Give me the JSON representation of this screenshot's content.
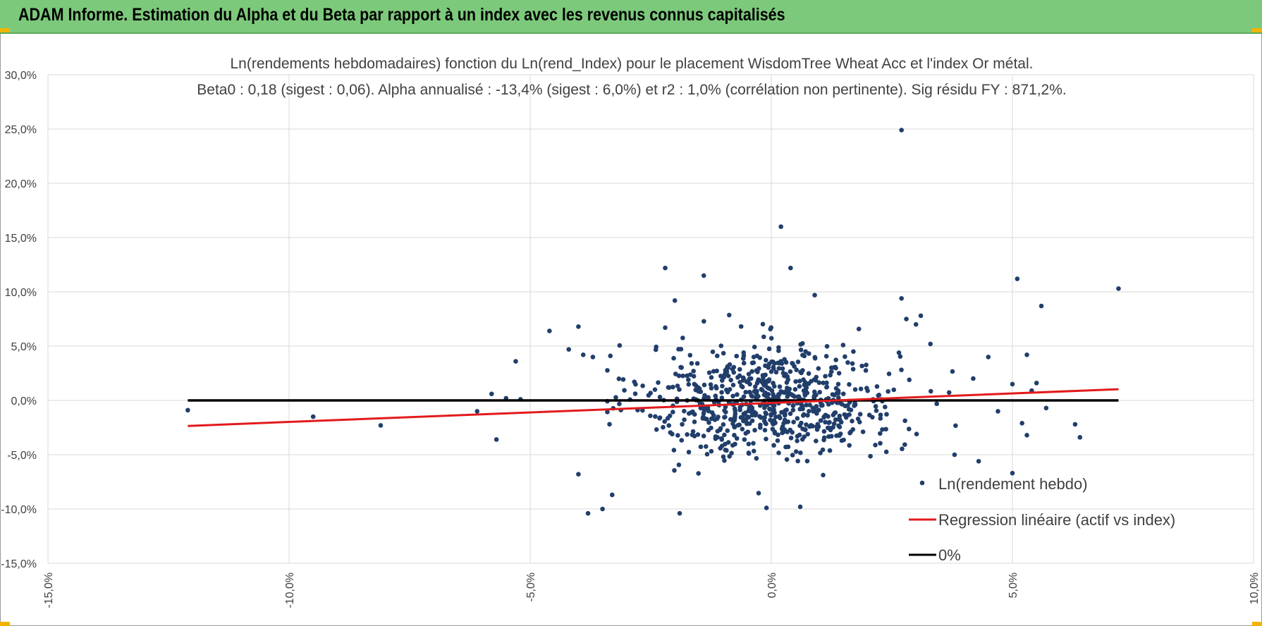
{
  "banner": {
    "title": "ADAM Informe. Estimation du Alpha et du Beta par rapport à un index avec les revenus connus capitalisés"
  },
  "colors": {
    "banner": "#7cc97b",
    "points": "#213e6b",
    "regression": "#e31a1c",
    "zero_line": "#000000",
    "grid": "#d9d9d9"
  },
  "chart_data": {
    "type": "scatter",
    "title": "Ln(rendements hebdomadaires) fonction du Ln(rend_Index) pour le placement WisdomTree Wheat Acc et l'index Or métal.",
    "subtitle": "Beta0 : 0,18 (sigest : 0,06).  Alpha annualisé : -13,4% (sigest : 6,0%) et r2 : 1,0% (corrélation non pertinente). Sig résidu FY : 871,2%.",
    "xlim": [
      -0.15,
      0.1
    ],
    "ylim": [
      -0.15,
      0.3
    ],
    "x_ticks": [
      -0.15,
      -0.1,
      -0.05,
      0.0,
      0.05,
      0.1
    ],
    "x_tick_labels": [
      "-15,0%",
      "-10,0%",
      "-5,0%",
      "0,0%",
      "5,0%",
      "10,0%"
    ],
    "y_ticks": [
      0.3,
      0.25,
      0.2,
      0.15,
      0.1,
      0.05,
      0.0,
      -0.05,
      -0.1,
      -0.15
    ],
    "y_tick_labels": [
      "30,0%",
      "25,0%",
      "20,0%",
      "15,0%",
      "10,0%",
      "5,0%",
      "0,0%",
      "-5,0%",
      "-10,0%",
      "-15,0%"
    ],
    "grid": true,
    "legend_position": "bottom-right",
    "legend": [
      "Ln(rendement hebdo)",
      "Regression linéaire (actif vs index)",
      "0%"
    ],
    "series": [
      {
        "name": "Ln(rendement hebdo)",
        "kind": "scatter",
        "cluster": {
          "count": 740,
          "seed": 20240611,
          "x_mean": 0.0,
          "x_sd": 0.013,
          "y_sd": 0.026
        },
        "points": [
          [
            -0.121,
            -0.009
          ],
          [
            -0.095,
            -0.015
          ],
          [
            -0.081,
            -0.023
          ],
          [
            -0.061,
            -0.01
          ],
          [
            -0.058,
            0.006
          ],
          [
            -0.057,
            -0.036
          ],
          [
            -0.055,
            0.002
          ],
          [
            -0.053,
            0.036
          ],
          [
            -0.052,
            0.001
          ],
          [
            -0.046,
            0.064
          ],
          [
            -0.042,
            0.047
          ],
          [
            -0.04,
            0.068
          ],
          [
            -0.039,
            0.042
          ],
          [
            -0.037,
            0.04
          ],
          [
            -0.04,
            -0.068
          ],
          [
            -0.038,
            -0.104
          ],
          [
            -0.035,
            -0.1
          ],
          [
            -0.033,
            -0.087
          ],
          [
            -0.022,
            0.122
          ],
          [
            -0.02,
            0.092
          ],
          [
            -0.022,
            0.067
          ],
          [
            -0.014,
            0.115
          ],
          [
            -0.019,
            -0.104
          ],
          [
            0.002,
            0.16
          ],
          [
            0.004,
            0.122
          ],
          [
            0.009,
            0.097
          ],
          [
            0.006,
            -0.098
          ],
          [
            -0.001,
            -0.099
          ],
          [
            0.027,
            0.249
          ],
          [
            0.027,
            0.094
          ],
          [
            0.028,
            0.075
          ],
          [
            0.031,
            0.078
          ],
          [
            0.033,
            0.052
          ],
          [
            0.03,
            0.07
          ],
          [
            0.038,
            -0.05
          ],
          [
            0.045,
            0.04
          ],
          [
            0.043,
            -0.056
          ],
          [
            0.047,
            -0.01
          ],
          [
            0.05,
            0.015
          ],
          [
            0.05,
            -0.067
          ],
          [
            0.051,
            0.112
          ],
          [
            0.052,
            -0.021
          ],
          [
            0.053,
            -0.032
          ],
          [
            0.053,
            0.042
          ],
          [
            0.054,
            0.009
          ],
          [
            0.055,
            0.016
          ],
          [
            0.056,
            0.087
          ],
          [
            0.057,
            -0.007
          ],
          [
            0.063,
            -0.022
          ],
          [
            0.064,
            -0.034
          ],
          [
            0.072,
            0.103
          ]
        ]
      },
      {
        "name": "Regression linéaire (actif vs index)",
        "kind": "line",
        "x": [
          -0.121,
          0.072
        ],
        "y": [
          -0.0235,
          0.0103
        ]
      },
      {
        "name": "0%",
        "kind": "line",
        "x": [
          -0.121,
          0.072
        ],
        "y": [
          0.0,
          0.0
        ]
      }
    ]
  }
}
